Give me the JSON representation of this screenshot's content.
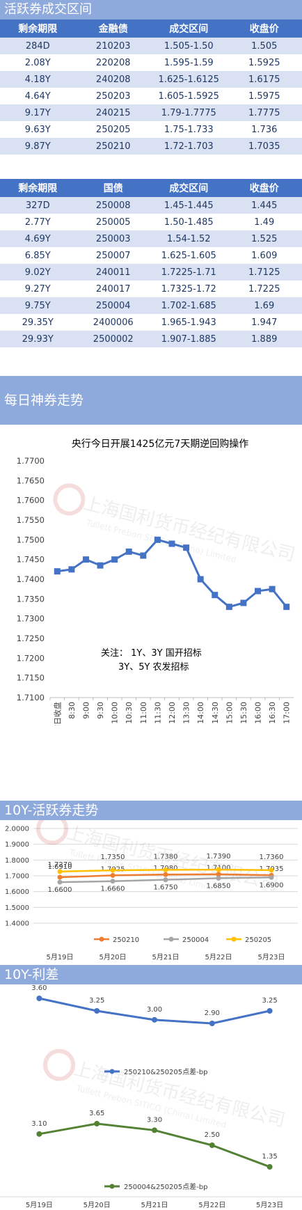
{
  "active_title": "活跃券成交区间",
  "table1": {
    "headers": [
      "剩余期限",
      "金融债",
      "成交区间",
      "收盘价"
    ],
    "rows": [
      [
        "284D",
        "210203",
        "1.505-1.50",
        "1.505"
      ],
      [
        "2.08Y",
        "220208",
        "1.595-1.59",
        "1.5925"
      ],
      [
        "4.18Y",
        "240208",
        "1.625-1.6125",
        "1.6175"
      ],
      [
        "4.64Y",
        "250203",
        "1.605-1.5925",
        "1.5975"
      ],
      [
        "9.17Y",
        "240215",
        "1.79-1.7775",
        "1.7775"
      ],
      [
        "9.63Y",
        "250205",
        "1.75-1.733",
        "1.736"
      ],
      [
        "9.87Y",
        "250210",
        "1.72-1.703",
        "1.7035"
      ]
    ]
  },
  "table2": {
    "headers": [
      "剩余期限",
      "国债",
      "成交区间",
      "收盘价"
    ],
    "rows": [
      [
        "327D",
        "250008",
        "1.45-1.445",
        "1.445"
      ],
      [
        "2.77Y",
        "250005",
        "1.50-1.485",
        "1.49"
      ],
      [
        "4.69Y",
        "250003",
        "1.54-1.52",
        "1.525"
      ],
      [
        "6.85Y",
        "250007",
        "1.625-1.605",
        "1.609"
      ],
      [
        "9.02Y",
        "240011",
        "1.7225-1.71",
        "1.7125"
      ],
      [
        "9.27Y",
        "240017",
        "1.7325-1.72",
        "1.7225"
      ],
      [
        "9.75Y",
        "250004",
        "1.702-1.685",
        "1.69"
      ],
      [
        "29.35Y",
        "2400006",
        "1.965-1.943",
        "1.947"
      ],
      [
        "29.93Y",
        "2500002",
        "1.907-1.885",
        "1.889"
      ]
    ]
  },
  "daily_title": "每日神券走势",
  "tenyr_title": "10Y-活跃券走势",
  "spread_title": "10Y-利差",
  "watermark": {
    "cn": "上海国利货币经纪有限公司",
    "en": "Tullett Prebon SITICO (China) Limited"
  },
  "chart_data": [
    {
      "type": "line",
      "title": "央行今日开展1425亿元7天期逆回购操作",
      "categories": [
        "昨日收盘",
        "8:30",
        "9:00",
        "9:30",
        "10:00",
        "10:30",
        "11:00",
        "11:30",
        "12:00",
        "13:30",
        "14:00",
        "14:30",
        "15:00",
        "15:30",
        "16:00",
        "16:30",
        "17:00"
      ],
      "values": [
        1.742,
        1.7425,
        1.745,
        1.7435,
        1.745,
        1.747,
        1.746,
        1.75,
        1.749,
        1.748,
        1.74,
        1.736,
        1.733,
        1.734,
        1.737,
        1.7375,
        1.733
      ],
      "ylim": [
        1.71,
        1.77
      ],
      "yticks": [
        "1.7700",
        "1.7650",
        "1.7600",
        "1.7550",
        "1.7500",
        "1.7450",
        "1.7400",
        "1.7350",
        "1.7300",
        "1.7250",
        "1.7200",
        "1.7150",
        "1.7100"
      ],
      "annotation": [
        "关注：  1Y、3Y 国开招标",
        "3Y、5Y 农发招标"
      ],
      "color": "#4472c4",
      "grid": false
    },
    {
      "type": "line",
      "categories": [
        "5月19日",
        "5月20日",
        "5月21日",
        "5月22日",
        "5月23日"
      ],
      "series": [
        {
          "name": "250210",
          "color": "#ed7d31",
          "values": [
            1.691,
            1.7025,
            1.708,
            1.71,
            1.7035
          ],
          "labels": [
            "1.6910",
            "1.7025",
            "1.7080",
            "1.7100",
            "1.7035"
          ]
        },
        {
          "name": "250004",
          "color": "#a5a5a5",
          "values": [
            1.66,
            1.666,
            1.675,
            1.685,
            1.69
          ],
          "labels": [
            "1.6600",
            "1.6660",
            "1.6750",
            "1.6850",
            "1.6900"
          ]
        },
        {
          "name": "250205",
          "color": "#ffc000",
          "values": [
            1.727,
            1.735,
            1.738,
            1.739,
            1.736
          ],
          "labels": [
            "1.7270",
            "1.7350",
            "1.7380",
            "1.7390",
            "1.7360"
          ]
        }
      ],
      "ylim": [
        1.4,
        2.0
      ],
      "yticks": [
        "2.0000",
        "1.9000",
        "1.8000",
        "1.7000",
        "1.6000",
        "1.5000",
        "1.4000"
      ],
      "legend": "bottom",
      "grid": true
    },
    {
      "type": "line",
      "categories": [
        "5月19日",
        "5月20日",
        "5月21日",
        "5月22日",
        "5月23日"
      ],
      "series": [
        {
          "name": "250210&250205点差-bp",
          "color": "#4472c4",
          "values": [
            3.6,
            3.25,
            3.0,
            2.9,
            3.25
          ],
          "labels": [
            "3.60",
            "3.25",
            "3.00",
            "2.90",
            "3.25"
          ]
        },
        {
          "name": "250004&250205点差-bp",
          "color": "#548235",
          "values": [
            3.1,
            3.65,
            3.3,
            2.5,
            1.35
          ],
          "labels": [
            "3.10",
            "3.65",
            "3.30",
            "2.50",
            "1.35"
          ]
        }
      ],
      "legend": "bottom"
    }
  ]
}
